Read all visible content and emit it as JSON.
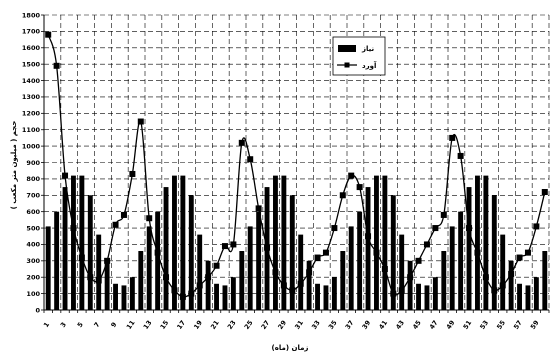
{
  "chart_data": {
    "type": "bar",
    "xlabel": "زمان (ماه)",
    "ylabel": "حجم ( میلیون متر مکعب )",
    "ylim": [
      0,
      1800
    ],
    "y_ticks": [
      0,
      100,
      200,
      300,
      400,
      500,
      600,
      700,
      800,
      900,
      1000,
      1100,
      1200,
      1300,
      1400,
      1500,
      1600,
      1700,
      1800
    ],
    "x": [
      1,
      2,
      3,
      4,
      5,
      6,
      7,
      8,
      9,
      10,
      11,
      12,
      13,
      14,
      15,
      16,
      17,
      18,
      19,
      20,
      21,
      22,
      23,
      24,
      25,
      26,
      27,
      28,
      29,
      30,
      31,
      32,
      33,
      34,
      35,
      36,
      37,
      38,
      39,
      40,
      41,
      42,
      43,
      44,
      45,
      46,
      47,
      48,
      49,
      50,
      51,
      52,
      53,
      54,
      55,
      56,
      57,
      58,
      59,
      60
    ],
    "x_tick_labels": [
      "1",
      "3",
      "5",
      "7",
      "9",
      "11",
      "13",
      "15",
      "17",
      "19",
      "21",
      "23",
      "25",
      "27",
      "29",
      "31",
      "33",
      "35",
      "37",
      "39",
      "41",
      "43",
      "45",
      "47",
      "49",
      "51",
      "53",
      "55",
      "57",
      "59"
    ],
    "grid": true,
    "legend_position": "top-right",
    "series": [
      {
        "name": "نیاز",
        "style": "bar",
        "color": "#000000",
        "values": [
          510,
          600,
          750,
          820,
          820,
          700,
          460,
          300,
          160,
          150,
          200,
          360,
          510,
          600,
          750,
          820,
          820,
          700,
          460,
          300,
          160,
          150,
          200,
          360,
          510,
          600,
          750,
          820,
          820,
          700,
          460,
          300,
          160,
          150,
          200,
          360,
          510,
          600,
          750,
          820,
          820,
          700,
          460,
          300,
          160,
          150,
          200,
          360,
          510,
          600,
          750,
          820,
          820,
          700,
          460,
          300,
          160,
          150,
          200,
          360
        ]
      },
      {
        "name": "آورد",
        "style": "line-marker",
        "color": "#000000",
        "values": [
          1680,
          1490,
          820,
          500,
          320,
          200,
          180,
          300,
          520,
          580,
          830,
          1150,
          560,
          350,
          200,
          120,
          80,
          100,
          150,
          200,
          270,
          390,
          400,
          1020,
          920,
          620,
          380,
          230,
          150,
          120,
          160,
          230,
          320,
          350,
          500,
          700,
          820,
          750,
          450,
          350,
          250,
          100,
          120,
          200,
          300,
          400,
          500,
          580,
          1050,
          940,
          500,
          350,
          200,
          120,
          150,
          220,
          320,
          350,
          510,
          720
        ]
      }
    ]
  }
}
